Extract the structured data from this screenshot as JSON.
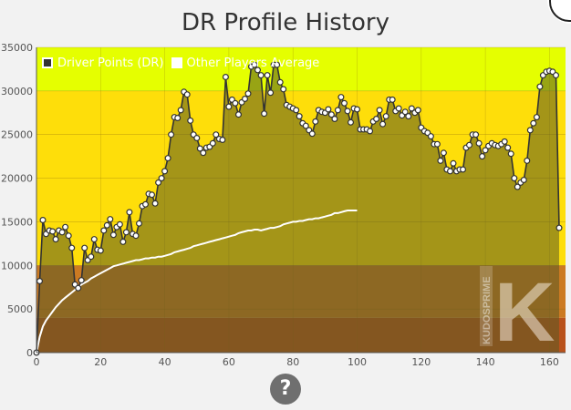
{
  "page": {
    "title": "DR Profile History"
  },
  "help": {
    "glyph": "?"
  },
  "watermark": {
    "text": "KUDOSPRIME",
    "letter": "K"
  },
  "chart_data": {
    "type": "line",
    "title": "DR Profile History",
    "xlim": [
      0,
      165
    ],
    "ylim": [
      0,
      35000
    ],
    "x_ticks": [
      0,
      20,
      40,
      60,
      80,
      100,
      120,
      140,
      160
    ],
    "y_ticks": [
      0,
      5000,
      10000,
      15000,
      20000,
      25000,
      30000,
      35000
    ],
    "bands": [
      {
        "from": 0,
        "to": 4000,
        "color": "#b9521c"
      },
      {
        "from": 4000,
        "to": 10000,
        "color": "#cc7a22"
      },
      {
        "from": 10000,
        "to": 30000,
        "color": "#fede0a"
      },
      {
        "from": 30000,
        "to": 35000,
        "color": "#e5ff00"
      }
    ],
    "legend": {
      "position": "top-left"
    },
    "series": [
      {
        "name": "Driver Points (DR)",
        "color": "#333333",
        "values": [
          0,
          8200,
          15200,
          13600,
          14000,
          13900,
          13000,
          14000,
          13800,
          14400,
          13400,
          12000,
          7800,
          7400,
          8300,
          12000,
          10600,
          11000,
          13000,
          11800,
          11700,
          14000,
          14600,
          15300,
          13500,
          14400,
          14700,
          12700,
          13800,
          16100,
          13600,
          13400,
          14800,
          16800,
          17000,
          18200,
          18100,
          17100,
          19500,
          20000,
          20800,
          22300,
          25000,
          27000,
          26900,
          27800,
          29900,
          29600,
          26600,
          25000,
          24600,
          23400,
          22900,
          23500,
          23600,
          24000,
          25000,
          24500,
          24400,
          31600,
          28200,
          29000,
          28600,
          27300,
          28700,
          29100,
          29700,
          32800,
          33000,
          32400,
          31800,
          27400,
          31800,
          29800,
          33000,
          33000,
          31000,
          30200,
          28400,
          28200,
          28000,
          27800,
          27100,
          26300,
          26000,
          25500,
          25100,
          26500,
          27800,
          27600,
          27500,
          27900,
          27300,
          26800,
          27800,
          29300,
          28600,
          27700,
          26400,
          28000,
          27900,
          25600,
          25600,
          25600,
          25400,
          26500,
          26800,
          27800,
          26200,
          27100,
          29000,
          29000,
          27700,
          28000,
          27200,
          27600,
          27100,
          28000,
          27500,
          27800,
          25800,
          25400,
          25200,
          24800,
          23900,
          23900,
          22000,
          22900,
          21000,
          20800,
          21700,
          20800,
          21000,
          21000,
          23500,
          23800,
          25000,
          25000,
          24000,
          22500,
          23200,
          23700,
          24000,
          23800,
          23700,
          23900,
          24200,
          23500,
          22800,
          20000,
          19000,
          19500,
          19800,
          22000,
          25500,
          26300,
          27000,
          30500,
          31800,
          32200,
          32300,
          32200,
          31800,
          14300
        ]
      },
      {
        "name": "Other Players Average",
        "color": "#ffffff",
        "values": [
          0,
          1800,
          3000,
          3700,
          4200,
          4700,
          5200,
          5600,
          6000,
          6300,
          6600,
          6900,
          7200,
          7500,
          7800,
          8000,
          8200,
          8500,
          8700,
          8900,
          9100,
          9300,
          9500,
          9700,
          9900,
          10000,
          10100,
          10200,
          10300,
          10400,
          10500,
          10600,
          10600,
          10700,
          10800,
          10800,
          10900,
          10900,
          11000,
          11000,
          11100,
          11200,
          11300,
          11500,
          11600,
          11700,
          11800,
          11900,
          12000,
          12200,
          12300,
          12400,
          12500,
          12600,
          12700,
          12800,
          12900,
          13000,
          13100,
          13200,
          13300,
          13400,
          13500,
          13700,
          13800,
          13900,
          14000,
          14000,
          14100,
          14100,
          14000,
          14100,
          14200,
          14300,
          14300,
          14400,
          14500,
          14700,
          14800,
          14900,
          15000,
          15000,
          15100,
          15100,
          15200,
          15300,
          15300,
          15400,
          15400,
          15500,
          15600,
          15700,
          15800,
          16000,
          16000,
          16100,
          16200,
          16300,
          16300,
          16300,
          16300
        ]
      }
    ]
  }
}
